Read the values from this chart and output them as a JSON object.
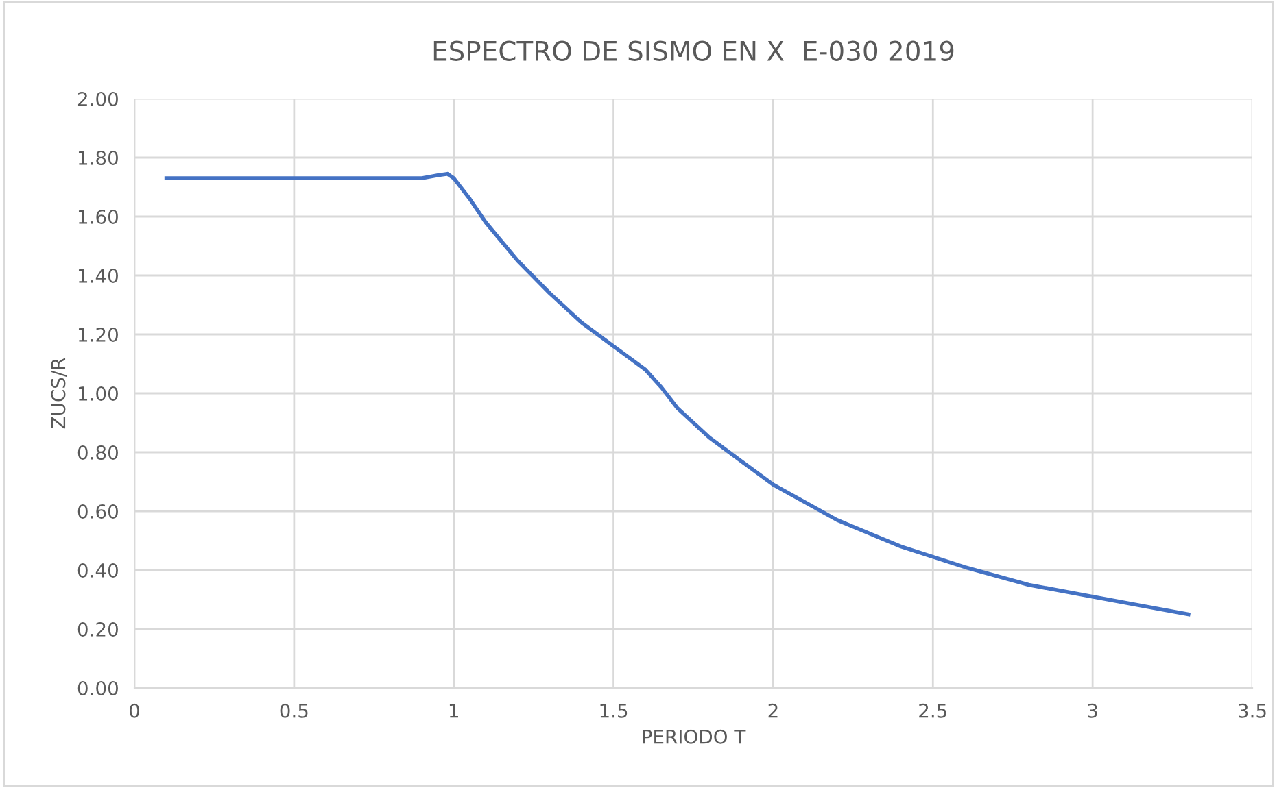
{
  "chart_data": {
    "type": "line",
    "title": "ESPECTRO DE SISMO EN X  E-030 2019",
    "xlabel": "PERIODO T",
    "ylabel": "ZUCS/R",
    "x": [
      0.1,
      0.3,
      0.5,
      0.7,
      0.9,
      0.95,
      0.98,
      1.0,
      1.05,
      1.1,
      1.2,
      1.3,
      1.4,
      1.5,
      1.6,
      1.65,
      1.7,
      1.8,
      1.9,
      2.0,
      2.2,
      2.4,
      2.6,
      2.8,
      3.0,
      3.2,
      3.3
    ],
    "series": [
      {
        "color": "#4472c4",
        "values": [
          1.73,
          1.73,
          1.73,
          1.73,
          1.73,
          1.74,
          1.745,
          1.73,
          1.66,
          1.58,
          1.45,
          1.34,
          1.24,
          1.16,
          1.08,
          1.02,
          0.95,
          0.85,
          0.77,
          0.69,
          0.57,
          0.48,
          0.41,
          0.35,
          0.31,
          0.27,
          0.25
        ]
      }
    ],
    "xlim": [
      0,
      3.5
    ],
    "xticks": [
      0,
      0.5,
      1,
      1.5,
      2,
      2.5,
      3,
      3.5
    ],
    "ylim": [
      0,
      2
    ],
    "yticks": [
      {
        "value": 0,
        "label": "0.00"
      },
      {
        "value": 0.2,
        "label": "0.20"
      },
      {
        "value": 0.4,
        "label": "0.40"
      },
      {
        "value": 0.6,
        "label": "0.60"
      },
      {
        "value": 0.8,
        "label": "0.80"
      },
      {
        "value": 1.0,
        "label": "1.00"
      },
      {
        "value": 1.2,
        "label": "1.20"
      },
      {
        "value": 1.4,
        "label": "1.40"
      },
      {
        "value": 1.6,
        "label": "1.60"
      },
      {
        "value": 1.8,
        "label": "1.80"
      },
      {
        "value": 2.0,
        "label": "2.00"
      }
    ],
    "grid": true,
    "marker": "none",
    "line_style": "solid"
  }
}
